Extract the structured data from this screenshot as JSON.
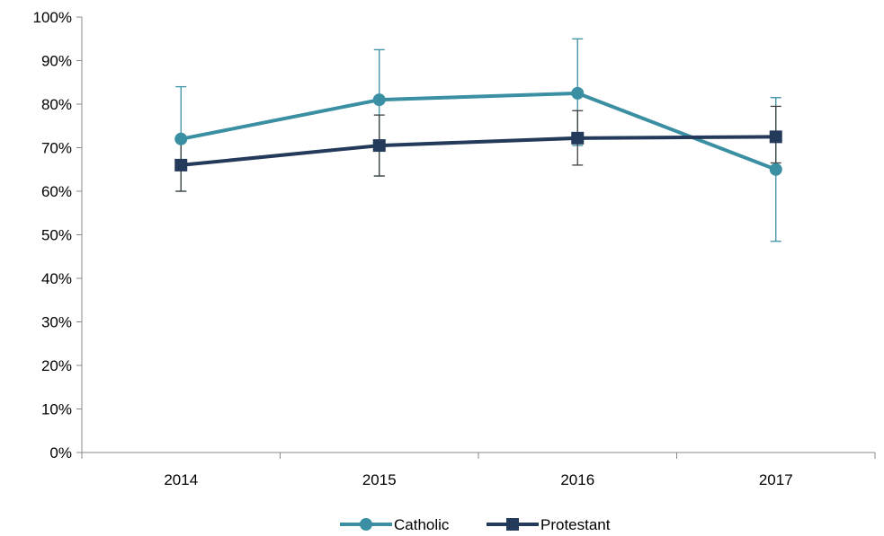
{
  "chart_data": {
    "type": "line",
    "title": "",
    "xlabel": "",
    "ylabel": "",
    "categories": [
      "2014",
      "2015",
      "2016",
      "2017"
    ],
    "ylim": [
      0,
      1
    ],
    "yticks": [
      "0%",
      "10%",
      "20%",
      "30%",
      "40%",
      "50%",
      "60%",
      "70%",
      "80%",
      "90%",
      "100%"
    ],
    "grid": false,
    "legend_position": "bottom",
    "series": [
      {
        "name": "Catholic",
        "color": "#3A8FA3",
        "marker": "circle",
        "values": [
          0.72,
          0.81,
          0.825,
          0.65
        ],
        "error_low": [
          0.6,
          0.635,
          0.705,
          0.485
        ],
        "error_high": [
          0.84,
          0.925,
          0.95,
          0.815
        ]
      },
      {
        "name": "Protestant",
        "color": "#243A5A",
        "marker": "square",
        "values": [
          0.66,
          0.705,
          0.722,
          0.725
        ],
        "error_low": [
          0.6,
          0.635,
          0.66,
          0.665
        ],
        "error_high": [
          0.72,
          0.775,
          0.785,
          0.795
        ]
      }
    ]
  }
}
